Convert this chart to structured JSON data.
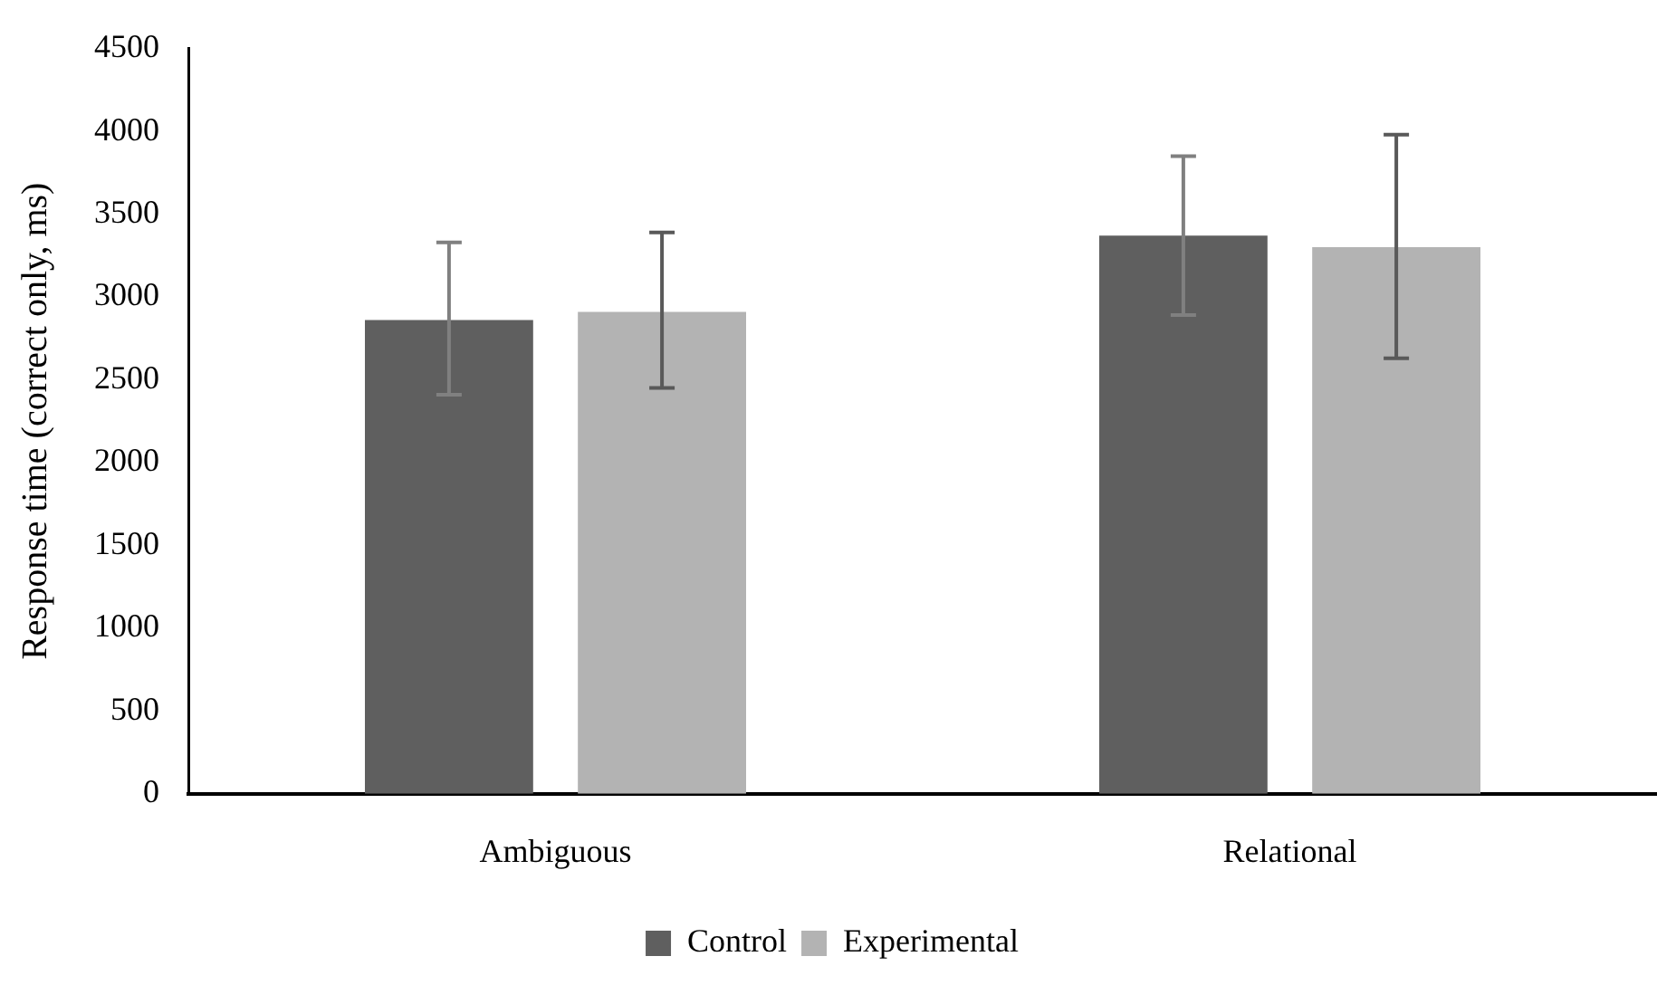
{
  "chart_data": {
    "type": "bar",
    "ylabel": "Response time (correct only, ms)",
    "categories": [
      "Ambiguous",
      "Relational"
    ],
    "series": [
      {
        "name": "Control",
        "color": "#5f5f5f",
        "values": [
          2860,
          3370
        ],
        "errors": [
          [
            2410,
            3330
          ],
          [
            2890,
            3850
          ]
        ]
      },
      {
        "name": "Experimental",
        "color": "#b3b3b3",
        "values": [
          2910,
          3300
        ],
        "errors": [
          [
            2450,
            3390
          ],
          [
            2630,
            3980
          ]
        ]
      }
    ],
    "ylim": [
      0,
      4500
    ],
    "yticks": [
      0,
      500,
      1000,
      1500,
      2000,
      2500,
      3000,
      3500,
      4000,
      4500
    ],
    "grid": false,
    "legend": "bottom"
  }
}
